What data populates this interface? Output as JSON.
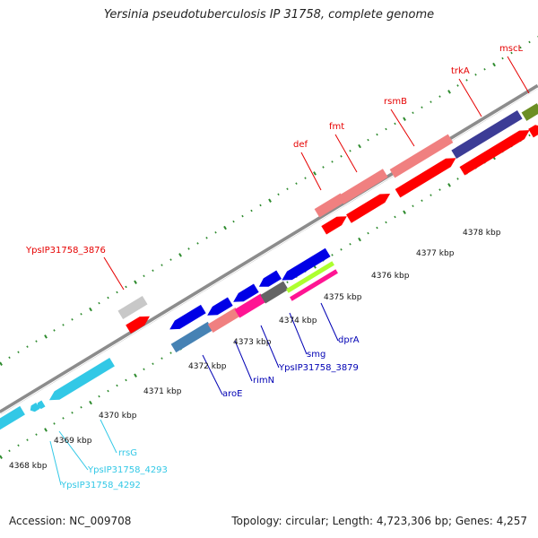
{
  "title": "Yersinia pseudotuberculosis IP 31758, complete genome",
  "accession": "Accession: NC_009708",
  "topology": "Topology: circular; Length: 4,723,306 bp; Genes: 4,257",
  "colors": {
    "backbone": "#8c8c8c",
    "tick": "#2e8b2e",
    "label_red": "#e60000",
    "label_blue": "#0000b4",
    "label_cyan": "#32c8e6",
    "scale_text": "#111111"
  },
  "scale_labels": [
    "4368 kbp",
    "4369 kbp",
    "4370 kbp",
    "4371 kbp",
    "4372 kbp",
    "4373 kbp",
    "4374 kbp",
    "4375 kbp",
    "4376 kbp",
    "4377 kbp",
    "4378 kbp"
  ],
  "gene_labels": {
    "ypsip31758_3876": "YpsIP31758_3876",
    "def": "def",
    "fmt": "fmt",
    "rsmb": "rsmB",
    "trka": "trkA",
    "mscl": "mscL",
    "aroe": "aroE",
    "rimn": "rimN",
    "ypsip31758_3879": "YpsIP31758_3879",
    "smg": "smg",
    "dpra": "dprA",
    "rrsg": "rrsG",
    "ypsip31758_4293": "YpsIP31758_4293",
    "ypsip31758_4292": "YpsIP31758_4292"
  }
}
